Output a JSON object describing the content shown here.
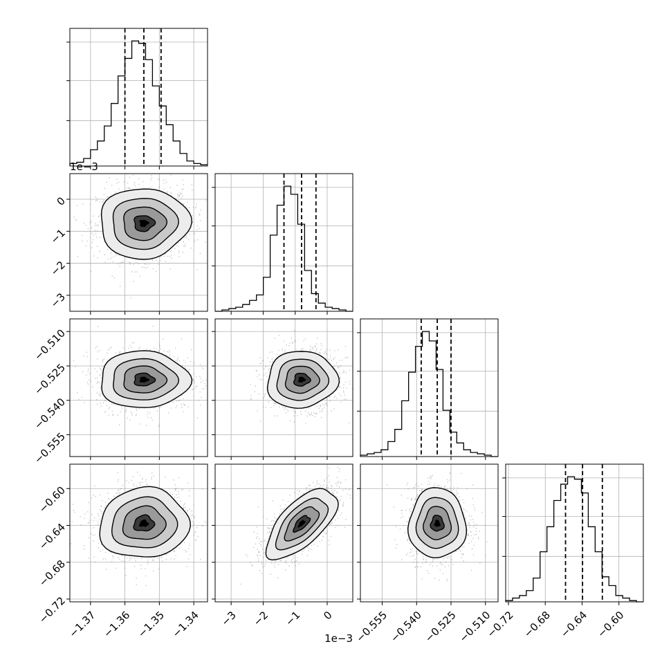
{
  "chart_data": {
    "type": "corner",
    "description_note": "",
    "grid": true,
    "colors": {
      "line": "#000000",
      "grid": "#b0b0b0",
      "scatter": "#808080"
    },
    "params": [
      {
        "id": "p0",
        "range": [
          -1.376,
          -1.336
        ],
        "ticks": [
          -1.37,
          -1.36,
          -1.35,
          -1.34
        ],
        "tick_labels": [
          "−1.37",
          "−1.36",
          "−1.35",
          "−1.34"
        ],
        "offset_text": "",
        "median": -1.3545,
        "q16": -1.36,
        "q84": -1.3495
      },
      {
        "id": "p1",
        "scale": 0.001,
        "range": [
          -3.5,
          0.8
        ],
        "ticks": [
          -3,
          -2,
          -1,
          0
        ],
        "tick_labels": [
          "3",
          "2",
          "1",
          "0"
        ],
        "tick_neg": [
          true,
          true,
          true,
          false
        ],
        "offset_text": "1e−3",
        "median": -0.8,
        "q16": -1.35,
        "q84": -0.35
      },
      {
        "id": "p2",
        "range": [
          -0.5645,
          -0.5045
        ],
        "ticks": [
          -0.555,
          -0.54,
          -0.525,
          -0.51
        ],
        "tick_labels": [
          "−0.555",
          "−0.540",
          "−0.525",
          "−0.510"
        ],
        "offset_text": "",
        "median": -0.531,
        "q16": -0.538,
        "q84": -0.525
      },
      {
        "id": "p3",
        "range": [
          -0.723,
          -0.5735
        ],
        "ticks": [
          -0.72,
          -0.68,
          -0.64,
          -0.6
        ],
        "tick_labels": [
          "−0.72",
          "−0.68",
          "−0.64",
          "−0.60"
        ],
        "offset_text": "",
        "median": -0.6395,
        "q16": -0.658,
        "q84": -0.618
      }
    ],
    "row_offset_labels": [
      "",
      "1e−3",
      "",
      ""
    ],
    "histograms": [
      {
        "param": "p0",
        "bin_edges_start": -1.376,
        "bin_width": 0.002,
        "counts": [
          2,
          3,
          6,
          13,
          20,
          32,
          50,
          72,
          86,
          100,
          98,
          85,
          64,
          48,
          33,
          20,
          10,
          4,
          2,
          1
        ]
      },
      {
        "param": "p1",
        "bin_edges_start": -3.5,
        "bin_width": 0.215,
        "counts": [
          0,
          1,
          2,
          3,
          5,
          8,
          12,
          25,
          56,
          78,
          92,
          86,
          64,
          30,
          13,
          6,
          3,
          2,
          1,
          0
        ]
      },
      {
        "param": "p2",
        "bin_edges_start": -0.5645,
        "bin_width": 0.003,
        "counts": [
          1,
          2,
          3,
          5,
          11,
          20,
          41,
          62,
          81,
          92,
          85,
          64,
          34,
          18,
          10,
          5,
          3,
          2,
          1,
          0
        ]
      },
      {
        "param": "p3",
        "bin_edges_start": -0.723,
        "bin_width": 0.0074751,
        "counts": [
          1,
          3,
          5,
          9,
          19,
          40,
          60,
          81,
          94,
          100,
          98,
          87,
          60,
          40,
          20,
          13,
          5,
          3,
          1,
          0
        ]
      }
    ],
    "joint": [
      {
        "row": 1,
        "col": 0,
        "mean": [
          -1.3545,
          -0.75
        ],
        "sigma": [
          0.0065,
          0.55
        ],
        "rho": 0.02
      },
      {
        "row": 2,
        "col": 0,
        "mean": [
          -1.3545,
          -0.531
        ],
        "sigma": [
          0.0065,
          0.0062
        ],
        "rho": 0.0
      },
      {
        "row": 2,
        "col": 1,
        "mean": [
          -0.8,
          -0.531
        ],
        "sigma": [
          0.55,
          0.0062
        ],
        "rho": 0.05
      },
      {
        "row": 3,
        "col": 0,
        "mean": [
          -1.3545,
          -0.638
        ],
        "sigma": [
          0.0065,
          0.019
        ],
        "rho": 0.05
      },
      {
        "row": 3,
        "col": 1,
        "mean": [
          -0.8,
          -0.638
        ],
        "sigma": [
          0.55,
          0.019
        ],
        "rho": 0.65
      },
      {
        "row": 3,
        "col": 2,
        "mean": [
          -0.531,
          -0.638
        ],
        "sigma": [
          0.0062,
          0.019
        ],
        "rho": 0.0
      }
    ]
  }
}
